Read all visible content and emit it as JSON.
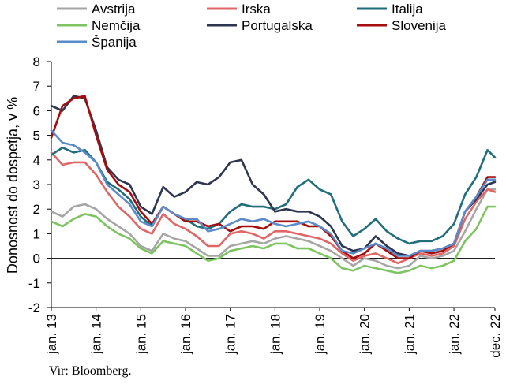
{
  "chart_data": {
    "type": "line",
    "ylabel": "Donosnost do dospetja, v %",
    "ylim": [
      -2,
      8
    ],
    "yticks": [
      -2,
      -1,
      0,
      1,
      2,
      3,
      4,
      5,
      6,
      7,
      8
    ],
    "xlim": [
      "2013-01",
      "2022-12"
    ],
    "xticks": [
      {
        "value": "2013-01",
        "label": "jan. 13"
      },
      {
        "value": "2014-01",
        "label": "jan. 14"
      },
      {
        "value": "2015-01",
        "label": "jan. 15"
      },
      {
        "value": "2016-01",
        "label": "jan. 16"
      },
      {
        "value": "2017-01",
        "label": "jan. 17"
      },
      {
        "value": "2018-01",
        "label": "jan. 18"
      },
      {
        "value": "2019-01",
        "label": "jan. 19"
      },
      {
        "value": "2020-01",
        "label": "jan. 20"
      },
      {
        "value": "2021-01",
        "label": "jan. 21"
      },
      {
        "value": "2022-01",
        "label": "jan. 22"
      },
      {
        "value": "2022-12",
        "label": "dec. 22"
      }
    ],
    "grid": false,
    "legend_position": "top",
    "x_dates": [
      "2013-01",
      "2013-04",
      "2013-07",
      "2013-10",
      "2014-01",
      "2014-04",
      "2014-07",
      "2014-10",
      "2015-01",
      "2015-04",
      "2015-07",
      "2015-10",
      "2016-01",
      "2016-04",
      "2016-07",
      "2016-10",
      "2017-01",
      "2017-04",
      "2017-07",
      "2017-10",
      "2018-01",
      "2018-04",
      "2018-07",
      "2018-10",
      "2019-01",
      "2019-04",
      "2019-07",
      "2019-10",
      "2020-01",
      "2020-04",
      "2020-07",
      "2020-10",
      "2021-01",
      "2021-04",
      "2021-07",
      "2021-10",
      "2022-01",
      "2022-04",
      "2022-07",
      "2022-10",
      "2022-12"
    ],
    "series": [
      {
        "name": "Avstrija",
        "color": "#a6a6a6",
        "values": [
          1.9,
          1.7,
          2.1,
          2.2,
          2.0,
          1.6,
          1.3,
          1.0,
          0.5,
          0.3,
          1.0,
          0.8,
          0.7,
          0.4,
          0.1,
          0.1,
          0.5,
          0.6,
          0.7,
          0.6,
          0.8,
          0.9,
          0.8,
          0.7,
          0.5,
          0.3,
          0.0,
          -0.3,
          0.0,
          -0.1,
          -0.3,
          -0.4,
          -0.3,
          0.1,
          0.0,
          0.1,
          0.3,
          1.1,
          2.0,
          2.8,
          2.8
        ]
      },
      {
        "name": "Irska",
        "color": "#e06666",
        "values": [
          4.3,
          3.8,
          3.9,
          3.9,
          3.4,
          2.7,
          2.1,
          1.7,
          1.2,
          1.0,
          1.8,
          1.4,
          1.2,
          0.9,
          0.5,
          0.5,
          1.0,
          1.1,
          1.0,
          0.8,
          1.1,
          1.1,
          1.0,
          0.9,
          0.8,
          0.6,
          0.2,
          -0.1,
          0.1,
          0.2,
          0.0,
          -0.2,
          0.0,
          0.2,
          0.1,
          0.2,
          0.5,
          1.6,
          2.3,
          2.8,
          2.7
        ]
      },
      {
        "name": "Italija",
        "color": "#1f6e7a",
        "values": [
          4.2,
          4.5,
          4.3,
          4.4,
          3.9,
          3.1,
          2.8,
          2.4,
          1.7,
          1.3,
          2.1,
          1.8,
          1.6,
          1.3,
          1.2,
          1.4,
          1.9,
          2.2,
          2.1,
          2.1,
          2.0,
          2.2,
          2.9,
          3.2,
          2.8,
          2.6,
          1.5,
          0.9,
          1.2,
          1.6,
          1.1,
          0.8,
          0.6,
          0.7,
          0.7,
          0.9,
          1.4,
          2.6,
          3.3,
          4.4,
          4.1
        ]
      },
      {
        "name": "Nemčija",
        "color": "#7ec462",
        "values": [
          1.5,
          1.3,
          1.6,
          1.8,
          1.7,
          1.3,
          1.0,
          0.8,
          0.4,
          0.2,
          0.7,
          0.6,
          0.5,
          0.2,
          -0.1,
          0.0,
          0.3,
          0.4,
          0.5,
          0.4,
          0.6,
          0.6,
          0.4,
          0.4,
          0.2,
          0.0,
          -0.4,
          -0.5,
          -0.3,
          -0.4,
          -0.5,
          -0.6,
          -0.5,
          -0.3,
          -0.4,
          -0.3,
          -0.1,
          0.7,
          1.2,
          2.1,
          2.1
        ]
      },
      {
        "name": "Portugalska",
        "color": "#2e3550",
        "values": [
          6.2,
          6.0,
          6.6,
          6.5,
          5.2,
          3.7,
          3.2,
          3.0,
          2.1,
          1.8,
          2.9,
          2.5,
          2.7,
          3.1,
          3.0,
          3.3,
          3.9,
          4.0,
          3.0,
          2.6,
          1.9,
          2.0,
          1.9,
          1.9,
          1.7,
          1.3,
          0.5,
          0.3,
          0.4,
          0.9,
          0.5,
          0.2,
          0.1,
          0.3,
          0.3,
          0.4,
          0.6,
          1.9,
          2.4,
          3.0,
          3.1
        ]
      },
      {
        "name": "Slovenija",
        "color": "#a50e0e",
        "values": [
          4.9,
          6.2,
          6.5,
          6.6,
          5.0,
          3.6,
          3.0,
          2.7,
          1.9,
          1.4,
          2.1,
          1.8,
          1.5,
          1.5,
          1.3,
          1.4,
          1.1,
          1.3,
          1.3,
          1.2,
          1.5,
          1.5,
          1.5,
          1.3,
          1.3,
          0.9,
          0.3,
          0.0,
          0.2,
          0.6,
          0.3,
          0.0,
          0.0,
          0.3,
          0.2,
          0.3,
          0.6,
          1.9,
          2.5,
          3.3,
          3.3
        ]
      },
      {
        "name": "Španija",
        "color": "#5b8bc9",
        "values": [
          5.2,
          4.7,
          4.6,
          4.3,
          3.9,
          3.0,
          2.6,
          2.2,
          1.5,
          1.3,
          2.1,
          1.8,
          1.6,
          1.6,
          1.1,
          1.2,
          1.4,
          1.6,
          1.5,
          1.6,
          1.4,
          1.3,
          1.4,
          1.5,
          1.3,
          1.0,
          0.3,
          0.2,
          0.4,
          0.6,
          0.4,
          0.1,
          0.1,
          0.3,
          0.3,
          0.4,
          0.6,
          1.9,
          2.5,
          3.2,
          3.2
        ]
      }
    ],
    "source": "Vir: Bloomberg."
  }
}
